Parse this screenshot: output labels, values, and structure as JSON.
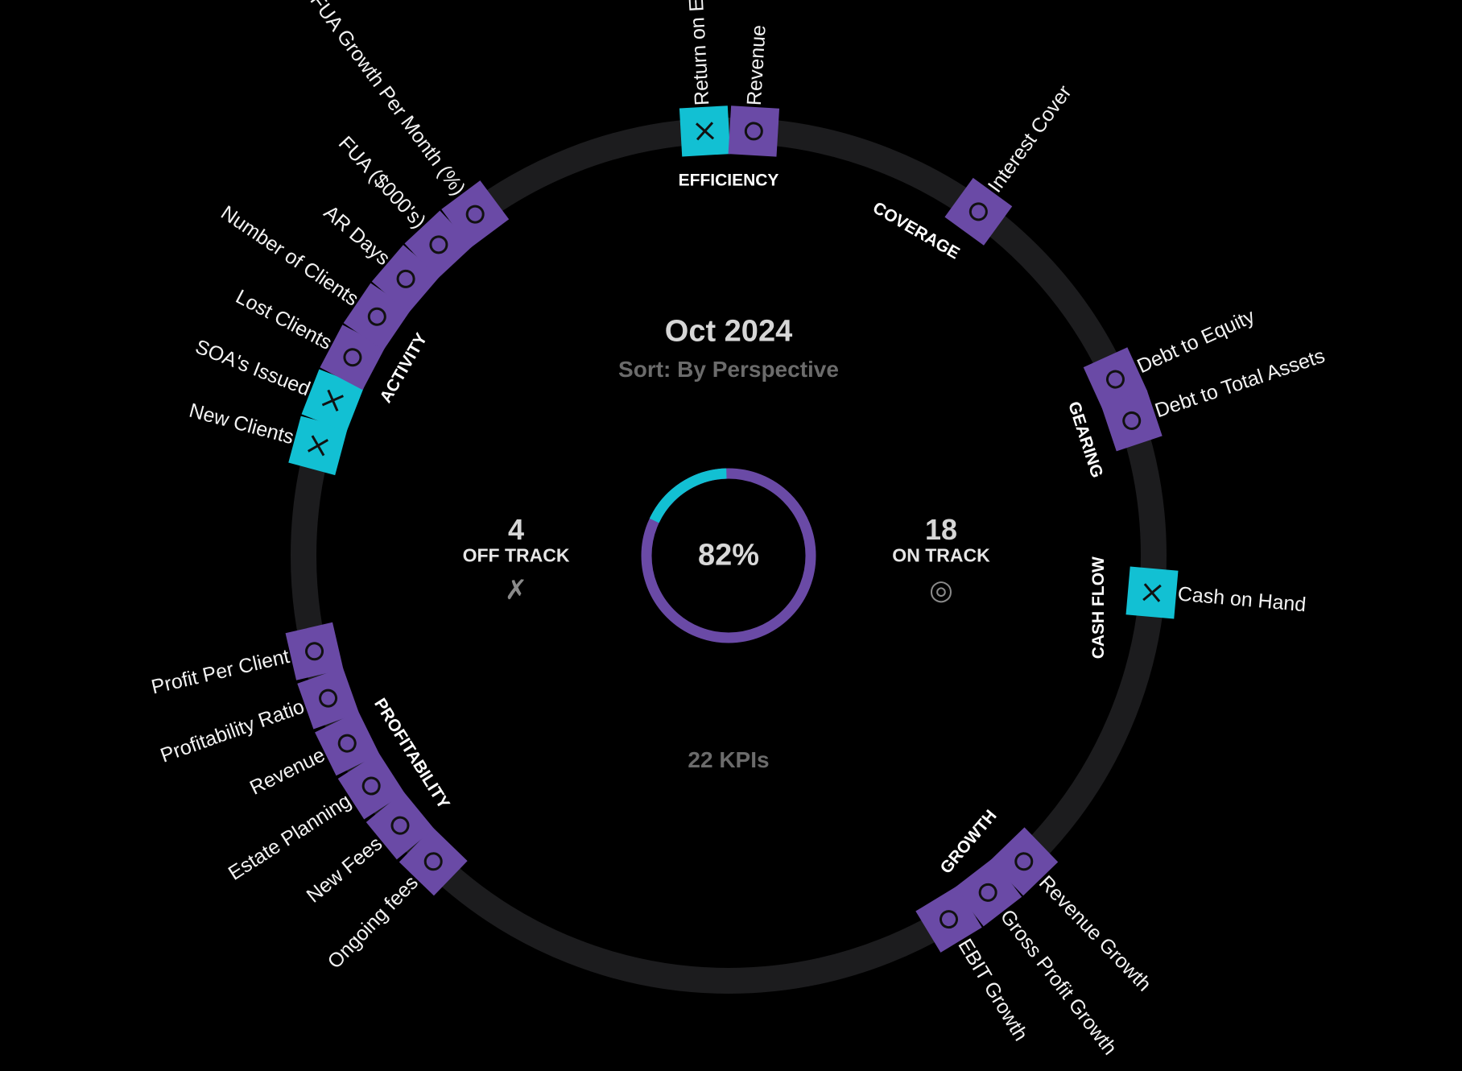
{
  "header": {
    "period": "Oct 2024",
    "sort_label": "Sort: By Perspective"
  },
  "summary": {
    "off_track_count": "4",
    "off_track_label": "OFF TRACK",
    "off_track_icon": "cross-icon",
    "on_track_count": "18",
    "on_track_label": "ON TRACK",
    "on_track_icon": "target-circle-icon",
    "percent_on_track": "82%",
    "percent_value": 82,
    "total_label": "22 KPIs"
  },
  "colors": {
    "on_track": "#6a4aa6",
    "off_track": "#12c0d3",
    "ring": "#1c1c1e",
    "background": "#000000"
  },
  "groups": [
    {
      "name": "EFFICIENCY",
      "kpis": [
        {
          "label": "Return on Equity",
          "status": "off"
        },
        {
          "label": "Revenue",
          "status": "on"
        }
      ]
    },
    {
      "name": "COVERAGE",
      "kpis": [
        {
          "label": "Interest Cover",
          "status": "on"
        }
      ]
    },
    {
      "name": "GEARING",
      "kpis": [
        {
          "label": "Debt to Equity",
          "status": "on"
        },
        {
          "label": "Debt to Total Assets",
          "status": "on"
        }
      ]
    },
    {
      "name": "CASH FLOW",
      "kpis": [
        {
          "label": "Cash on Hand",
          "status": "off"
        }
      ]
    },
    {
      "name": "GROWTH",
      "kpis": [
        {
          "label": "Revenue Growth",
          "status": "on"
        },
        {
          "label": "Gross Profit Growth",
          "status": "on"
        },
        {
          "label": "EBIT Growth",
          "status": "on"
        }
      ]
    },
    {
      "name": "PROFITABILITY",
      "kpis": [
        {
          "label": "Ongoing fees",
          "status": "on"
        },
        {
          "label": "New Fees",
          "status": "on"
        },
        {
          "label": "Estate Planning",
          "status": "on"
        },
        {
          "label": "Revenue",
          "status": "on"
        },
        {
          "label": "Profitability Ratio",
          "status": "on"
        },
        {
          "label": "Profit Per Client",
          "status": "on"
        }
      ]
    },
    {
      "name": "ACTIVITY",
      "kpis": [
        {
          "label": "New Clients",
          "status": "off"
        },
        {
          "label": "SOA's Issued",
          "status": "off"
        },
        {
          "label": "Lost Clients",
          "status": "on"
        },
        {
          "label": "Number of Clients",
          "status": "on"
        },
        {
          "label": "AR Days",
          "status": "on"
        },
        {
          "label": "FUA ($000's)",
          "status": "on"
        },
        {
          "label": "FUA Growth Per Month (%)",
          "status": "on"
        }
      ]
    }
  ]
}
